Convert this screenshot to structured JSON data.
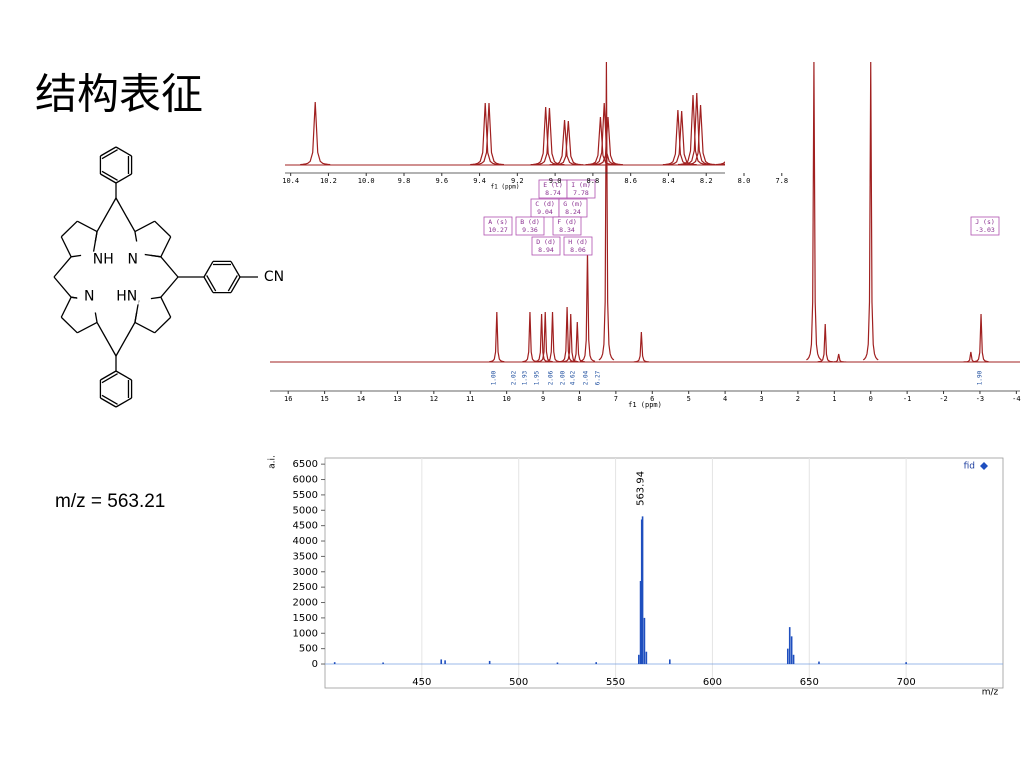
{
  "slide": {
    "title": "结构表征",
    "mz_label": "m/z = 563.21"
  },
  "structure": {
    "atom_labels": [
      "NH",
      "N",
      "N",
      "HN",
      "CN"
    ]
  },
  "nmr": {
    "type": "line",
    "x_label": "f1 (ppm)",
    "xlim": [
      16.5,
      -4.1
    ],
    "xticks": [
      16,
      15,
      14,
      13,
      12,
      11,
      10,
      9,
      8,
      7,
      6,
      5,
      4,
      3,
      2,
      1,
      0,
      -1,
      -2,
      -3,
      -4
    ],
    "ylim": [
      0,
      300
    ],
    "color": "#a02020",
    "peaks": {
      "x": [
        10.27,
        9.36,
        9.04,
        8.94,
        8.74,
        8.34,
        8.24,
        8.06,
        7.78,
        7.26,
        6.3,
        1.56,
        1.25,
        0.88,
        0,
        -2.75,
        -3.03
      ],
      "values": [
        50,
        50,
        48,
        50,
        50,
        55,
        48,
        40,
        110,
        300,
        30,
        300,
        38,
        8,
        300,
        10,
        48
      ]
    },
    "integrals": [
      "1.00",
      "2.02",
      "1.93",
      "1.95",
      "2.06",
      "2.00",
      "4.62",
      "2.04",
      "6.27",
      "1.90"
    ],
    "assignments": [
      {
        "label": "E (t)",
        "shift": "8.74"
      },
      {
        "label": "I (m)",
        "shift": "7.78"
      },
      {
        "label": "C (d)",
        "shift": "9.04"
      },
      {
        "label": "G (m)",
        "shift": "8.24"
      },
      {
        "label": "A (s)",
        "shift": "10.27"
      },
      {
        "label": "B (d)",
        "shift": "9.36"
      },
      {
        "label": "F (d)",
        "shift": "8.34"
      },
      {
        "label": "D (d)",
        "shift": "8.94"
      },
      {
        "label": "H (d)",
        "shift": "8.06"
      },
      {
        "label": "J (s)",
        "shift": "-3.03"
      }
    ],
    "inset": {
      "x_label": "f1 (ppm)",
      "xlim": [
        10.43,
        7.73
      ],
      "xticks": [
        10.4,
        10.2,
        {
          "value": 10,
          "label": "10.0"
        },
        9.8,
        9.6,
        9.4,
        9.2,
        {
          "value": 9,
          "label": "9.0"
        },
        8.8,
        8.6,
        8.4,
        8.2,
        {
          "value": 8,
          "label": "8.0"
        },
        7.8
      ],
      "ylim": [
        0,
        100
      ],
      "peaks": {
        "x": [
          10.27,
          9.37,
          9.35,
          9.05,
          9.03,
          8.95,
          8.93,
          8.76,
          8.74,
          8.72,
          8.35,
          8.33,
          8.27,
          8.25,
          8.23,
          8.07,
          8.05,
          7.8,
          7.78,
          7.76
        ],
        "values": [
          63,
          62,
          62,
          58,
          57,
          45,
          44,
          48,
          62,
          48,
          55,
          54,
          70,
          72,
          60,
          62,
          60,
          80,
          82,
          70
        ]
      }
    }
  },
  "ms": {
    "type": "bar",
    "y_label": "a.i.",
    "x_label": "m/z",
    "legend": "fid",
    "color": "#1f4fbf",
    "xlim": [
      400,
      750
    ],
    "xticks": [
      450,
      500,
      550,
      600,
      650,
      700
    ],
    "ylim": [
      -780,
      6700
    ],
    "yticks": [
      0,
      500,
      1000,
      1500,
      2000,
      2500,
      3000,
      3500,
      4000,
      4500,
      5000,
      5500,
      6000,
      6500
    ],
    "x": [
      405,
      430,
      460,
      462,
      485,
      520,
      540,
      562.0,
      562.9,
      563.5,
      563.94,
      564.9,
      565.9,
      578,
      638.9,
      639.9,
      640.9,
      641.9,
      655,
      700
    ],
    "values": [
      60,
      50,
      150,
      120,
      100,
      50,
      60,
      300,
      2700,
      4700,
      4800,
      1500,
      400,
      150,
      500,
      1200,
      900,
      300,
      80,
      60
    ],
    "peak_label": "563.94"
  }
}
